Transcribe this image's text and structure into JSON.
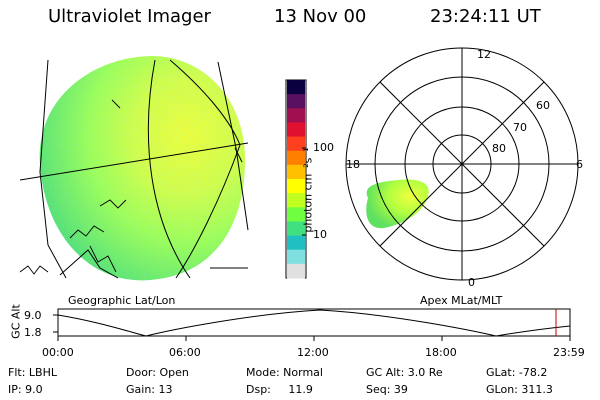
{
  "header": {
    "instrument": "Ultraviolet Imager",
    "date": "13 Nov 00",
    "time": "23:24:11 UT"
  },
  "colorbar": {
    "unit_label": "photon cm⁻²s⁻¹",
    "ticks": [
      "100",
      "10"
    ],
    "colors": [
      "#0a0040",
      "#5a1060",
      "#a01050",
      "#e01030",
      "#ff4020",
      "#ff8000",
      "#ffc000",
      "#ffff00",
      "#c0ff20",
      "#70ff40",
      "#40e080",
      "#20c0c0",
      "#80e0e0",
      "#e0e0e0"
    ]
  },
  "panels": {
    "geo_label": "Geographic Lat/Lon",
    "apex_label": "Apex MLat/MLT",
    "polar": {
      "mlt_labels": [
        "12",
        "18",
        "6",
        "0"
      ],
      "mlat_labels": [
        "60",
        "70",
        "80"
      ]
    }
  },
  "altitude_plot": {
    "ylabel": "GC Alt",
    "yticks": [
      "9.0",
      "1.8"
    ],
    "xticks": [
      "00:00",
      "06:00",
      "12:00",
      "18:00",
      "23:59"
    ]
  },
  "info": {
    "flt": "Flt: LBHL",
    "ip": "IP:  9.0",
    "door": "Door: Open",
    "gain": "Gain: 13",
    "mode": "Mode: Normal",
    "dsp": "Dsp:     11.9",
    "gcalt": "GC Alt: 3.0 Re",
    "seq": "Seq: 39",
    "glat": "GLat: -78.2",
    "glon": "GLon: 311.3"
  }
}
